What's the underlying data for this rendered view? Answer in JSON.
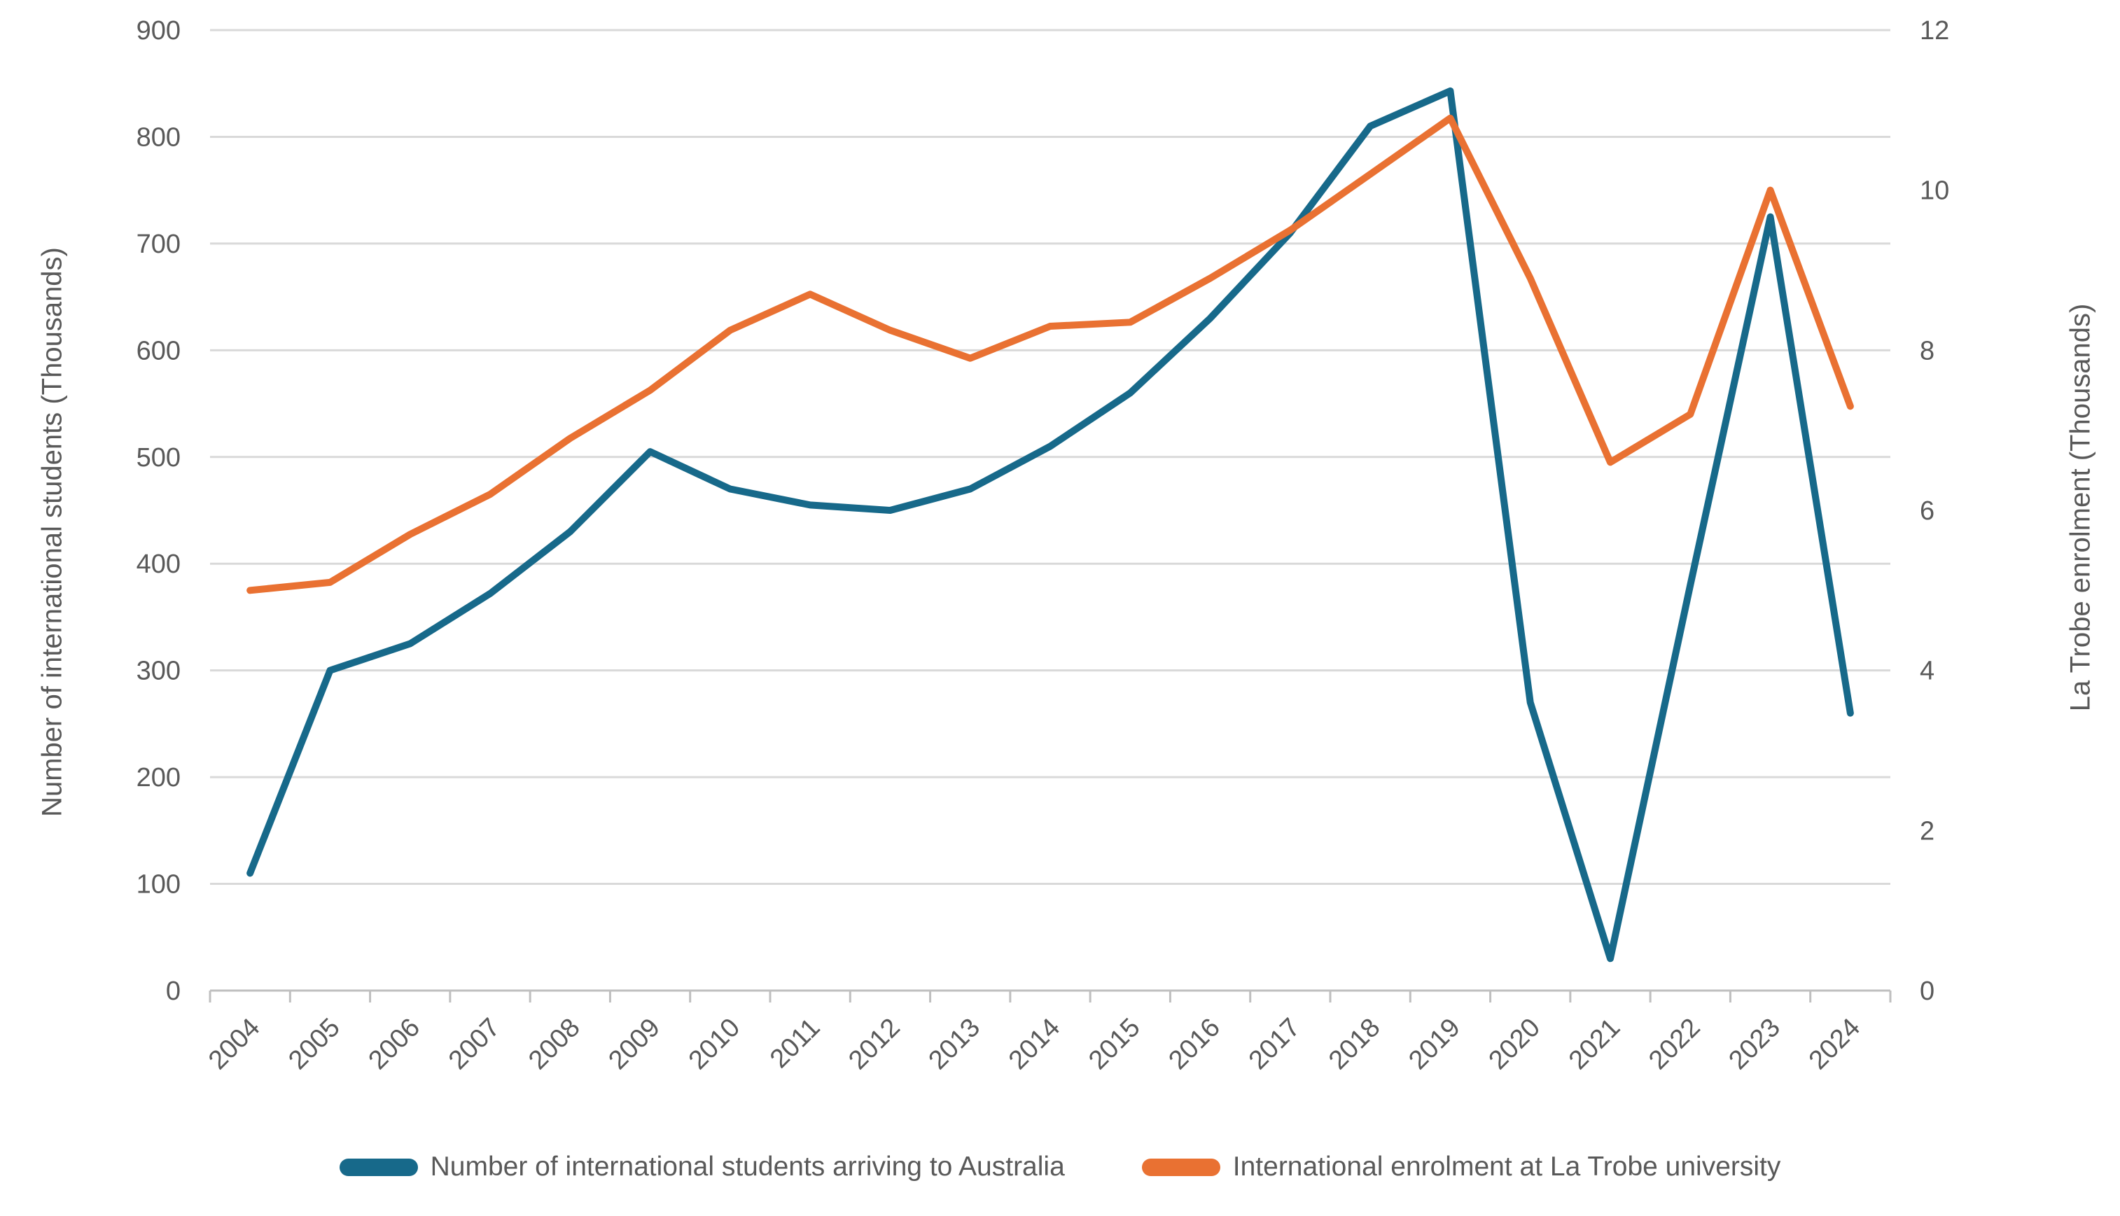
{
  "chart_data": {
    "type": "line",
    "categories": [
      "2004",
      "2005",
      "2006",
      "2007",
      "2008",
      "2009",
      "2010",
      "2011",
      "2012",
      "2013",
      "2014",
      "2015",
      "2016",
      "2017",
      "2018",
      "2019",
      "2020",
      "2021",
      "2022",
      "2023",
      "2024"
    ],
    "series": [
      {
        "name": "Number of international students arriving to Australia",
        "axis": "left",
        "color": "#17698A",
        "values": [
          110,
          300,
          325,
          372,
          430,
          505,
          470,
          455,
          450,
          470,
          510,
          560,
          630,
          710,
          810,
          843,
          270,
          30,
          380,
          725,
          260
        ]
      },
      {
        "name": "International enrolment at La Trobe university",
        "axis": "right",
        "color": "#E97132",
        "values": [
          5.0,
          5.1,
          5.7,
          6.2,
          6.9,
          7.5,
          8.25,
          8.7,
          8.25,
          7.9,
          8.3,
          8.35,
          8.9,
          9.5,
          10.2,
          10.9,
          8.9,
          6.6,
          7.2,
          10.0,
          7.3
        ]
      }
    ],
    "title": "",
    "xlabel": "",
    "ylabel_left": "Number of international students (Thousands)",
    "ylabel_right": "La Trobe enrolment (Thousands)",
    "y_left_ticks": [
      0,
      100,
      200,
      300,
      400,
      500,
      600,
      700,
      800,
      900
    ],
    "y_right_ticks": [
      0,
      2,
      4,
      6,
      8,
      10,
      12
    ],
    "ylim_left": [
      0,
      900
    ],
    "ylim_right": [
      0,
      12
    ],
    "grid": true,
    "legend_position": "bottom"
  },
  "colors": {
    "gridline": "#D9D9D9",
    "axis_line": "#BFBFBF",
    "tick_text": "#595959",
    "background": "#FFFFFF"
  }
}
